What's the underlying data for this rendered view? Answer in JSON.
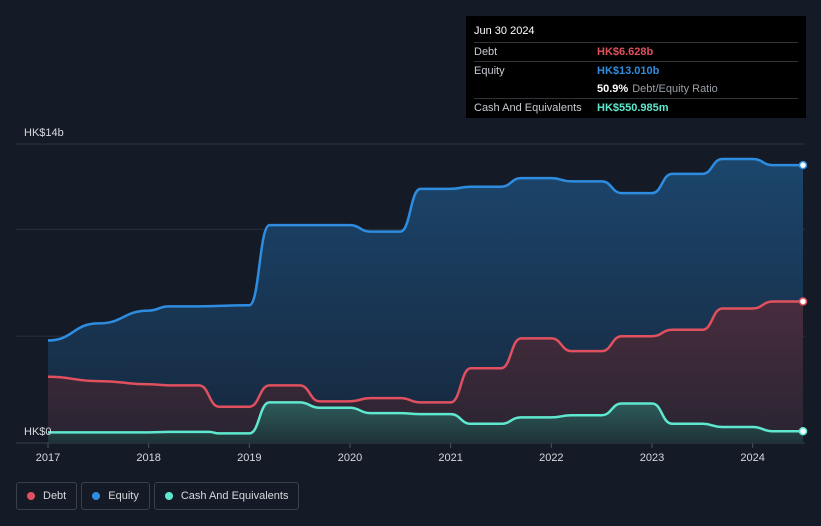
{
  "tooltip": {
    "date": "Jun 30 2024",
    "debt_label": "Debt",
    "debt_value": "HK$6.628b",
    "equity_label": "Equity",
    "equity_value": "HK$13.010b",
    "ratio_value": "50.9%",
    "ratio_label": "Debt/Equity Ratio",
    "cash_label": "Cash And Equivalents",
    "cash_value": "HK$550.985m"
  },
  "legend": {
    "debt": "Debt",
    "equity": "Equity",
    "cash": "Cash And Equivalents"
  },
  "colors": {
    "debt": "#e0505f",
    "equity": "#2e8de0",
    "cash": "#5ee8d0",
    "background": "#151b26"
  },
  "chart_data": {
    "type": "area",
    "y_top_label": "HK$14b",
    "y_bottom_label": "HK$0",
    "ylim": [
      0,
      14
    ],
    "xlim": [
      2017,
      2024.5
    ],
    "x_ticks": [
      "2017",
      "2018",
      "2019",
      "2020",
      "2021",
      "2022",
      "2023",
      "2024"
    ],
    "grid": true,
    "series": [
      {
        "name": "Equity",
        "x": [
          2017,
          2017.5,
          2018,
          2018.2,
          2018.5,
          2019,
          2019.2,
          2019.65,
          2020,
          2020.2,
          2020.5,
          2020.7,
          2021,
          2021.2,
          2021.5,
          2021.7,
          2022,
          2022.2,
          2022.5,
          2022.7,
          2023,
          2023.2,
          2023.5,
          2023.7,
          2024,
          2024.2,
          2024.5
        ],
        "values": [
          4.8,
          5.6,
          6.2,
          6.4,
          6.4,
          6.45,
          10.2,
          10.2,
          10.2,
          9.9,
          9.9,
          11.9,
          11.9,
          12.0,
          12.0,
          12.4,
          12.4,
          12.25,
          12.25,
          11.7,
          11.7,
          12.6,
          12.6,
          13.3,
          13.3,
          13.01,
          13.01
        ]
      },
      {
        "name": "Debt",
        "x": [
          2017,
          2017.5,
          2018,
          2018.2,
          2018.5,
          2018.7,
          2019,
          2019.2,
          2019.5,
          2019.7,
          2020,
          2020.2,
          2020.5,
          2020.7,
          2021,
          2021.2,
          2021.5,
          2021.7,
          2022,
          2022.2,
          2022.5,
          2022.7,
          2023,
          2023.2,
          2023.5,
          2023.7,
          2024,
          2024.2,
          2024.5
        ],
        "values": [
          3.1,
          2.9,
          2.75,
          2.7,
          2.7,
          1.7,
          1.7,
          2.7,
          2.7,
          1.95,
          1.95,
          2.1,
          2.1,
          1.9,
          1.9,
          3.5,
          3.5,
          4.9,
          4.9,
          4.3,
          4.3,
          5.0,
          5.0,
          5.3,
          5.3,
          6.3,
          6.3,
          6.628,
          6.628
        ]
      },
      {
        "name": "Cash And Equivalents",
        "x": [
          2017,
          2017.5,
          2018,
          2018.2,
          2018.6,
          2018.7,
          2019,
          2019.2,
          2019.5,
          2019.7,
          2020,
          2020.2,
          2020.5,
          2020.7,
          2021,
          2021.2,
          2021.5,
          2021.7,
          2022,
          2022.2,
          2022.5,
          2022.7,
          2023,
          2023.2,
          2023.5,
          2023.7,
          2024,
          2024.2,
          2024.5
        ],
        "values": [
          0.5,
          0.5,
          0.5,
          0.52,
          0.52,
          0.45,
          0.45,
          1.9,
          1.9,
          1.65,
          1.65,
          1.4,
          1.4,
          1.35,
          1.35,
          0.9,
          0.9,
          1.2,
          1.2,
          1.3,
          1.3,
          1.85,
          1.85,
          0.9,
          0.9,
          0.75,
          0.75,
          0.551,
          0.551
        ]
      }
    ]
  }
}
